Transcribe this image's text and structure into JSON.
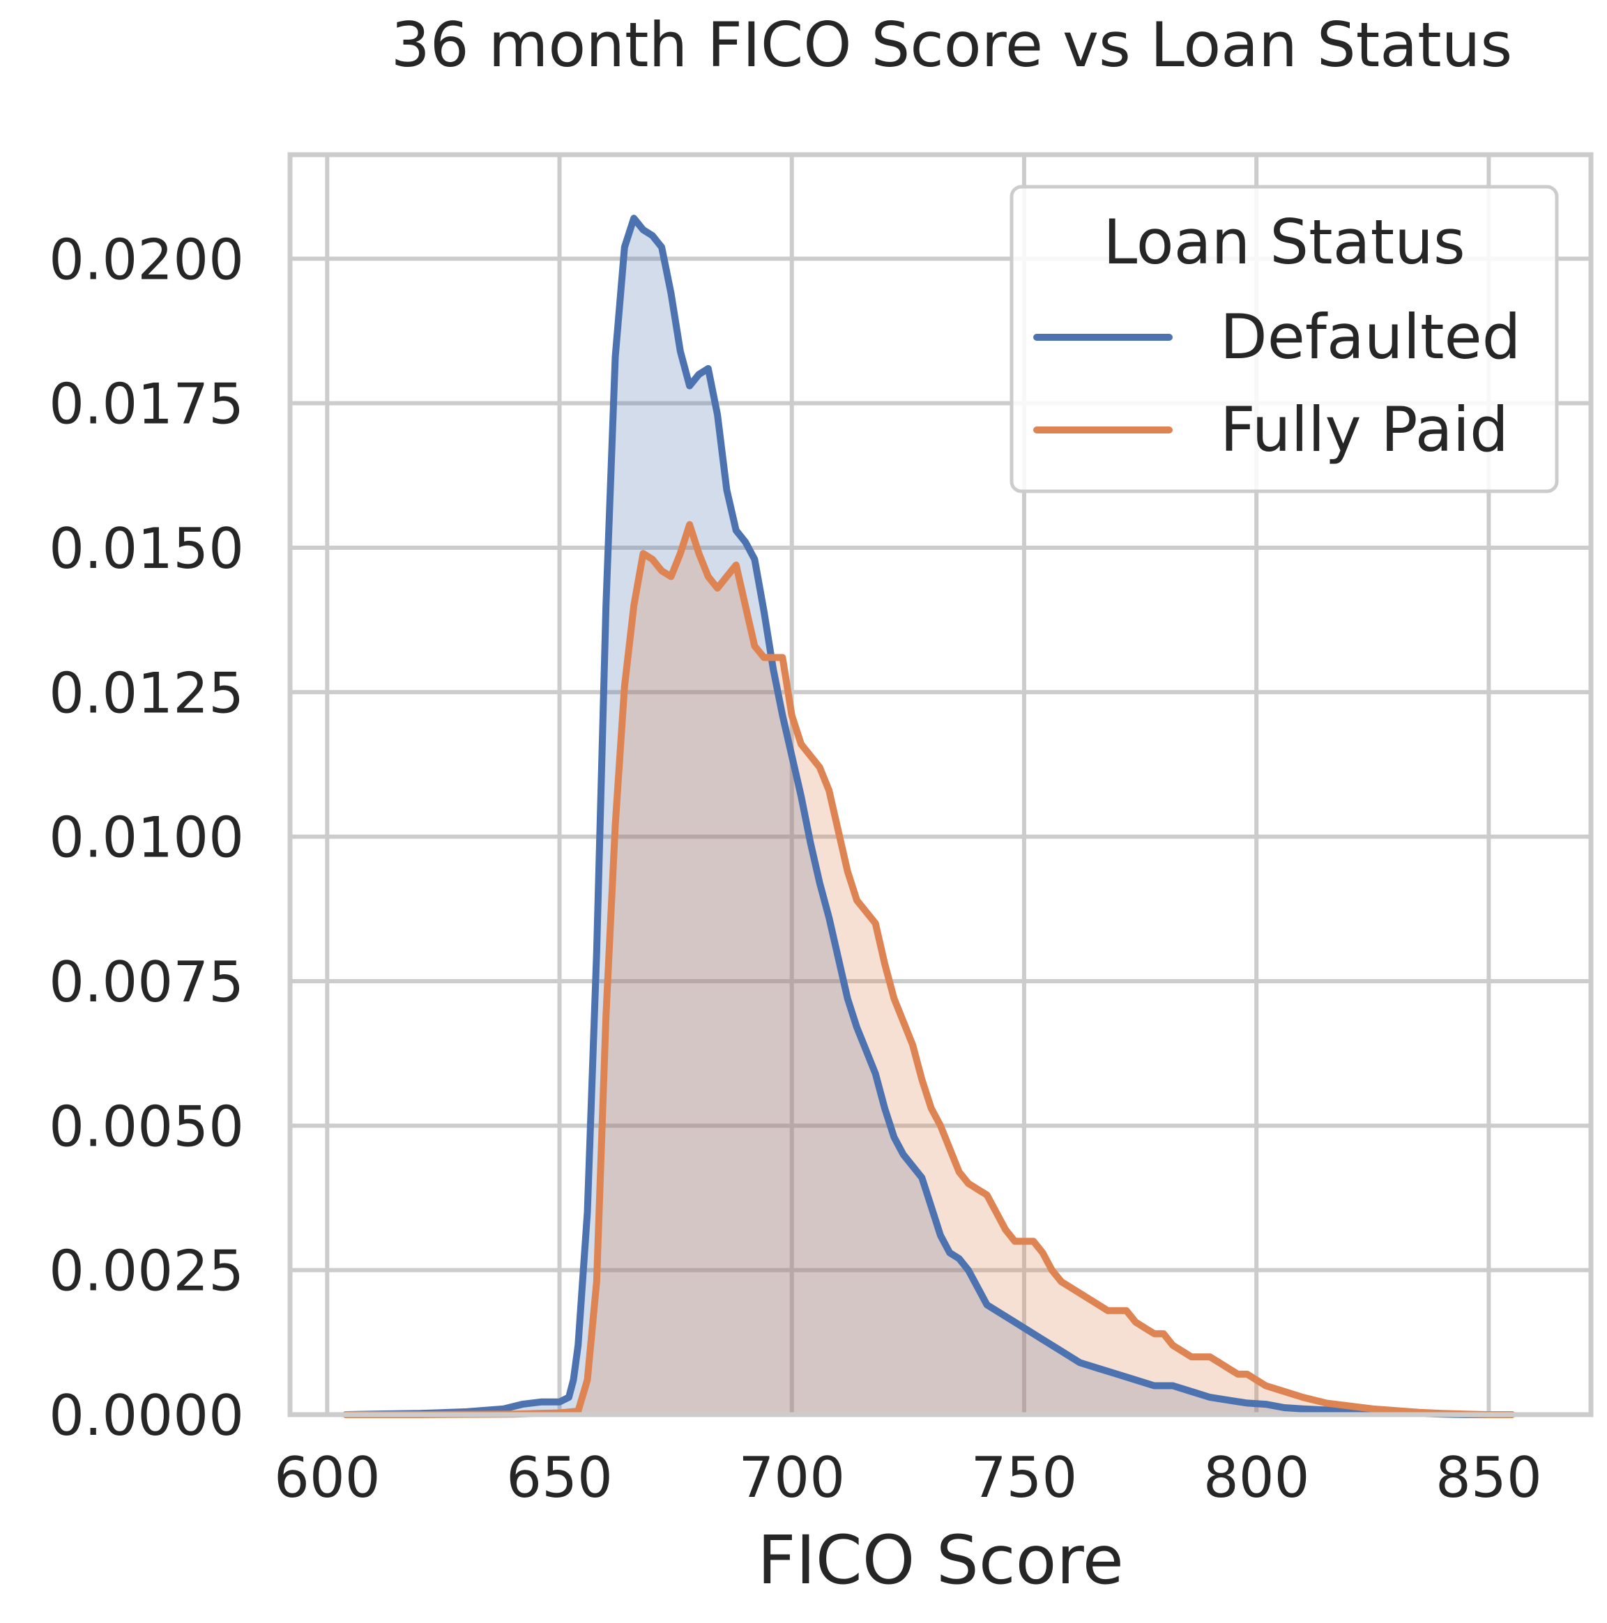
{
  "chart_data": {
    "type": "area",
    "title": "36 month FICO Score vs Loan Status",
    "xlabel": "FICO Score",
    "ylabel": "",
    "xlim": [
      592,
      872
    ],
    "ylim": [
      0,
      0.0218
    ],
    "x_ticks": [
      600,
      650,
      700,
      750,
      800,
      850
    ],
    "x_tick_labels": [
      "600",
      "650",
      "700",
      "750",
      "800",
      "850"
    ],
    "y_ticks": [
      0,
      0.0025,
      0.005,
      0.0075,
      0.01,
      0.0125,
      0.015,
      0.0175,
      0.02
    ],
    "y_tick_labels": [
      "0.0000",
      "0.0025",
      "0.0050",
      "0.0075",
      "0.0100",
      "0.0125",
      "0.0150",
      "0.0175",
      "0.0200"
    ],
    "grid": true,
    "legend": {
      "title": "Loan Status",
      "position": "top-right"
    },
    "series": [
      {
        "name": "Defaulted",
        "color": "#4c72b0",
        "x": [
          604,
          610,
          620,
          630,
          638,
          642,
          646,
          650,
          652,
          653,
          654,
          656,
          658,
          660,
          662,
          664,
          666,
          668,
          670,
          672,
          674,
          676,
          678,
          680,
          682,
          684,
          686,
          688,
          690,
          692,
          694,
          696,
          698,
          700,
          702,
          704,
          706,
          708,
          710,
          712,
          714,
          716,
          718,
          720,
          722,
          724,
          726,
          728,
          730,
          732,
          734,
          736,
          738,
          740,
          742,
          744,
          746,
          750,
          754,
          758,
          762,
          766,
          770,
          774,
          778,
          782,
          786,
          790,
          794,
          798,
          802,
          806,
          810,
          815,
          820,
          825,
          830,
          835,
          840,
          845,
          850,
          855
        ],
        "values": [
          0.0,
          1e-05,
          2e-05,
          5e-05,
          0.0001,
          0.00018,
          0.00022,
          0.00022,
          0.0003,
          0.0006,
          0.0012,
          0.0035,
          0.008,
          0.014,
          0.0183,
          0.0202,
          0.0207,
          0.0205,
          0.0204,
          0.0202,
          0.0194,
          0.0184,
          0.0178,
          0.018,
          0.0181,
          0.0173,
          0.016,
          0.0153,
          0.0151,
          0.0148,
          0.0139,
          0.0129,
          0.0121,
          0.0114,
          0.0107,
          0.0099,
          0.0092,
          0.0086,
          0.0079,
          0.0072,
          0.0067,
          0.0063,
          0.0059,
          0.0053,
          0.0048,
          0.0045,
          0.0043,
          0.0041,
          0.0036,
          0.0031,
          0.0028,
          0.0027,
          0.0025,
          0.0022,
          0.0019,
          0.0018,
          0.0017,
          0.0015,
          0.0013,
          0.0011,
          0.0009,
          0.0008,
          0.0007,
          0.0006,
          0.0005,
          0.0005,
          0.0004,
          0.0003,
          0.00025,
          0.0002,
          0.00018,
          0.00012,
          0.0001,
          8e-05,
          6e-05,
          4e-05,
          3e-05,
          2e-05,
          1e-05,
          0.0,
          0.0,
          0.0
        ]
      },
      {
        "name": "Fully Paid",
        "color": "#dd8452",
        "x": [
          604,
          620,
          640,
          650,
          654,
          656,
          658,
          660,
          662,
          664,
          666,
          668,
          670,
          672,
          674,
          676,
          678,
          680,
          682,
          684,
          686,
          688,
          690,
          692,
          694,
          696,
          698,
          700,
          702,
          704,
          706,
          708,
          710,
          712,
          714,
          716,
          718,
          720,
          722,
          724,
          726,
          728,
          730,
          732,
          734,
          736,
          738,
          740,
          742,
          744,
          746,
          748,
          750,
          752,
          754,
          756,
          758,
          760,
          762,
          764,
          766,
          768,
          770,
          772,
          774,
          776,
          778,
          780,
          782,
          784,
          786,
          788,
          790,
          792,
          794,
          796,
          798,
          800,
          802,
          806,
          810,
          815,
          820,
          825,
          830,
          835,
          840,
          845,
          850,
          855
        ],
        "values": [
          0.0,
          0.0,
          1e-05,
          3e-05,
          6e-05,
          0.0006,
          0.0023,
          0.0069,
          0.0102,
          0.0126,
          0.014,
          0.0149,
          0.0148,
          0.0146,
          0.0145,
          0.0149,
          0.0154,
          0.0149,
          0.0145,
          0.0143,
          0.0145,
          0.0147,
          0.014,
          0.0133,
          0.0131,
          0.0131,
          0.0131,
          0.0121,
          0.0116,
          0.0114,
          0.0112,
          0.0108,
          0.0101,
          0.0094,
          0.0089,
          0.0087,
          0.0085,
          0.0078,
          0.0072,
          0.0068,
          0.0064,
          0.0058,
          0.0053,
          0.005,
          0.0046,
          0.0042,
          0.004,
          0.0039,
          0.0038,
          0.0035,
          0.0032,
          0.003,
          0.003,
          0.003,
          0.0028,
          0.0025,
          0.0023,
          0.0022,
          0.0021,
          0.002,
          0.0019,
          0.0018,
          0.0018,
          0.0018,
          0.0016,
          0.0015,
          0.0014,
          0.0014,
          0.0012,
          0.0011,
          0.001,
          0.001,
          0.001,
          0.0009,
          0.0008,
          0.0007,
          0.0007,
          0.0006,
          0.0005,
          0.0004,
          0.0003,
          0.0002,
          0.00015,
          0.0001,
          7e-05,
          4e-05,
          2e-05,
          1e-05,
          0.0,
          0.0
        ]
      }
    ]
  }
}
